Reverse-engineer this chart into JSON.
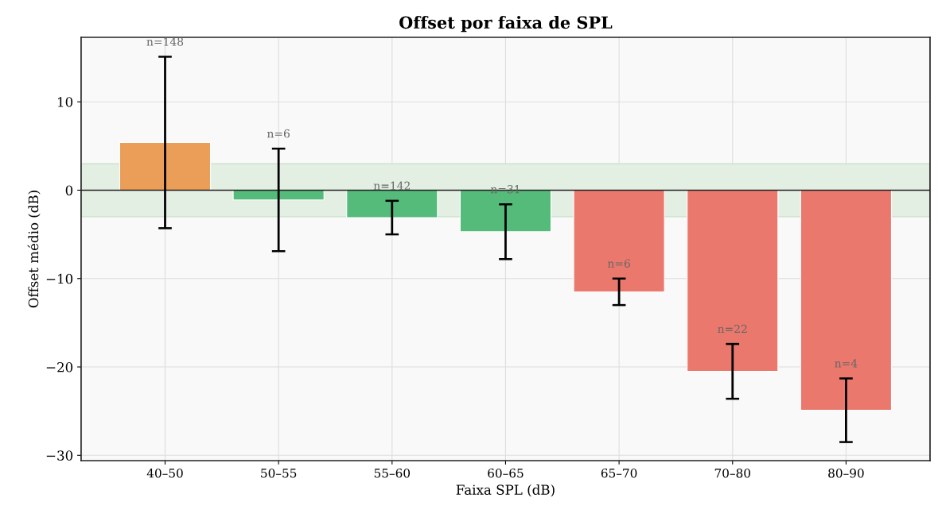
{
  "chart_data": {
    "type": "bar",
    "title": "Offset por faixa de SPL",
    "xlabel": "Faixa SPL (dB)",
    "ylabel": "Offset médio (dB)",
    "categories": [
      "40–50",
      "50–55",
      "55–60",
      "60–65",
      "65–70",
      "70–80",
      "80–90"
    ],
    "values": [
      5.4,
      -1.1,
      -3.1,
      -4.7,
      -11.5,
      -20.5,
      -24.9
    ],
    "colors": [
      "#eb9e57",
      "#54bb7a",
      "#54bb7a",
      "#54bb7a",
      "#ea786d",
      "#ea786d",
      "#ea786d"
    ],
    "errors": [
      9.7,
      5.8,
      1.9,
      3.1,
      1.5,
      3.1,
      3.6
    ],
    "annotations": [
      {
        "text": "n=148",
        "x": "40–50",
        "y": 15.1
      },
      {
        "text": "n=6",
        "x": "50–55",
        "y": 4.7
      },
      {
        "text": "n=142",
        "x": "55–60",
        "y": -1.2
      },
      {
        "text": "n=31",
        "x": "60–65",
        "y": -1.6
      },
      {
        "text": "n=6",
        "x": "65–70",
        "y": -10.0
      },
      {
        "text": "n=22",
        "x": "70–80",
        "y": -17.4
      },
      {
        "text": "n=4",
        "x": "80–90",
        "y": -21.3
      }
    ],
    "ylim": [
      -30.6,
      17.3
    ],
    "yticks": [
      {
        "value": -30,
        "label": "−30"
      },
      {
        "value": -20,
        "label": "−20"
      },
      {
        "value": -10,
        "label": "−10"
      },
      0,
      10
    ],
    "ref_lines": [
      {
        "axis": "y",
        "value": 0,
        "color": "#222222",
        "line_style": "solid"
      }
    ],
    "bands": [
      {
        "axis": "y",
        "from": -3,
        "to": 3,
        "color": "#e4efe4"
      }
    ],
    "grid": true
  }
}
